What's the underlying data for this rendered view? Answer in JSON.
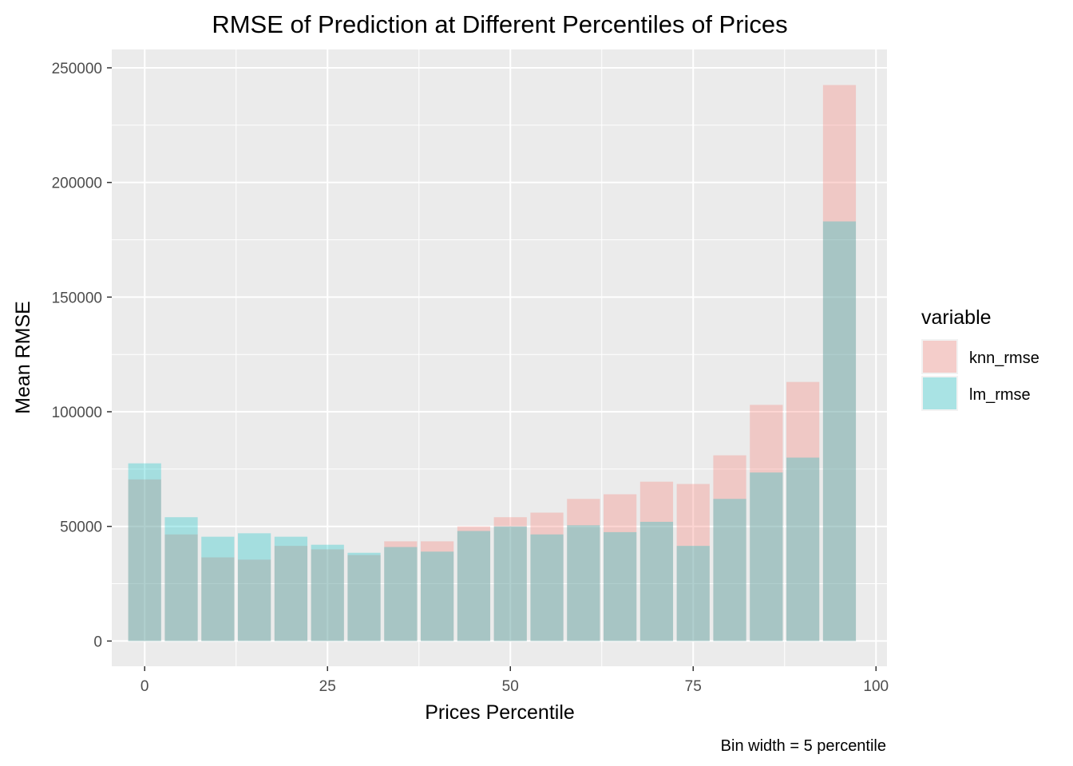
{
  "chart_data": {
    "type": "bar",
    "title": "RMSE of Prediction at Different Percentiles of Prices",
    "xlabel": "Prices Percentile",
    "ylabel": "Mean RMSE",
    "caption": "Bin width = 5 percentile",
    "xlim": [
      -4.5,
      101.5
    ],
    "ylim": [
      -11000,
      258000
    ],
    "xticks": [
      0,
      25,
      50,
      75,
      100
    ],
    "xtick_labels": [
      "0",
      "25",
      "50",
      "75",
      "100"
    ],
    "yticks": [
      0,
      50000,
      100000,
      150000,
      200000,
      250000
    ],
    "ytick_labels": [
      "0",
      "50000",
      "100000",
      "150000",
      "200000",
      "250000"
    ],
    "grid": true,
    "bar_width": 4.5,
    "x": [
      0,
      5,
      10,
      15,
      20,
      25,
      30,
      35,
      40,
      45,
      50,
      55,
      60,
      65,
      70,
      75,
      80,
      85,
      90,
      95
    ],
    "series": [
      {
        "name": "knn_rmse",
        "color": "#f8766d",
        "values": [
          70500,
          46500,
          36500,
          35500,
          41500,
          40000,
          37500,
          43500,
          43500,
          50000,
          54000,
          56000,
          62000,
          64000,
          69500,
          68500,
          81000,
          103000,
          113000,
          242500
        ]
      },
      {
        "name": "lm_rmse",
        "color": "#00bfc4",
        "values": [
          77500,
          54000,
          45500,
          47000,
          45500,
          42000,
          38500,
          41000,
          39000,
          48000,
          50000,
          46500,
          50500,
          47500,
          52000,
          41500,
          62000,
          73500,
          80000,
          183000
        ]
      }
    ],
    "legend": {
      "title": "variable",
      "position": "right",
      "entries": [
        "knn_rmse",
        "lm_rmse"
      ]
    },
    "panel_background": "#ebebeb",
    "grid_color": "#ffffff"
  }
}
